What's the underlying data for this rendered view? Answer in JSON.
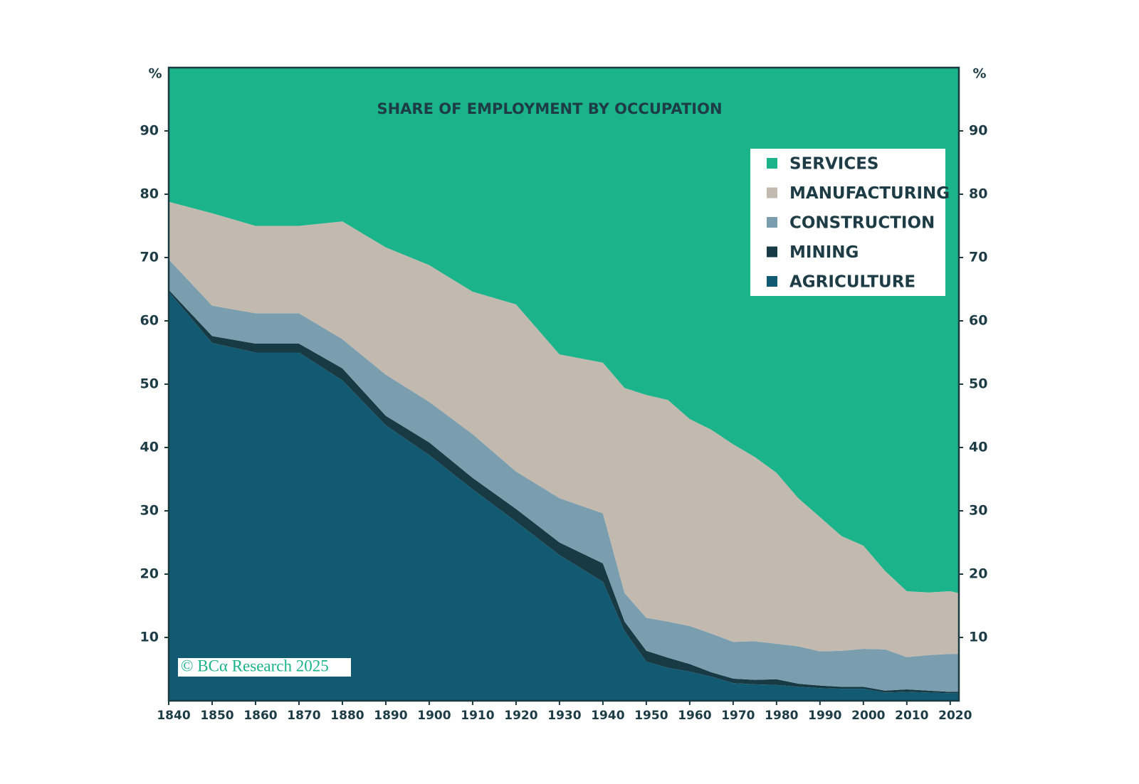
{
  "chart_data": {
    "type": "stacked_area",
    "title": "SHARE OF EMPLOYMENT BY OCCUPATION",
    "y_unit": "%",
    "source": "© BCα Research 2025",
    "x": [
      1840,
      1850,
      1860,
      1870,
      1880,
      1890,
      1900,
      1910,
      1920,
      1930,
      1940,
      1945,
      1950,
      1955,
      1960,
      1965,
      1970,
      1975,
      1980,
      1985,
      1990,
      1995,
      2000,
      2005,
      2010,
      2015,
      2020,
      2022
    ],
    "series": [
      {
        "name": "AGRICULTURE",
        "color": "#125a72",
        "values": [
          64.6,
          56.5,
          55,
          55,
          50.6,
          43.5,
          38.8,
          33.4,
          28.3,
          23,
          18.8,
          11,
          6.2,
          5.2,
          4.6,
          3.8,
          2.8,
          2.6,
          2.5,
          2.2,
          2.0,
          1.9,
          1.9,
          1.3,
          1.4,
          1.3,
          1.2,
          1.2
        ]
      },
      {
        "name": "MINING",
        "color": "#173a44",
        "values": [
          0.3,
          1.1,
          1.4,
          1.4,
          1.9,
          1.5,
          2.0,
          1.8,
          2.0,
          2.0,
          2.9,
          1.5,
          1.7,
          1.6,
          1.2,
          0.7,
          0.7,
          0.7,
          0.9,
          0.5,
          0.4,
          0.3,
          0.3,
          0.3,
          0.4,
          0.3,
          0.2,
          0.2
        ]
      },
      {
        "name": "CONSTRUCTION",
        "color": "#7b9eaf",
        "values": [
          4.8,
          4.8,
          4.8,
          4.8,
          4.6,
          6.5,
          6.4,
          6.9,
          5.9,
          7.0,
          7.9,
          4.5,
          5.2,
          5.7,
          6.0,
          6.1,
          5.8,
          6.1,
          5.6,
          5.9,
          5.4,
          5.7,
          6.0,
          6.5,
          5.1,
          5.6,
          6.0,
          6.0
        ]
      },
      {
        "name": "MANUFACTURING",
        "color": "#c2b9af",
        "values": [
          9.1,
          14.6,
          13.8,
          13.8,
          18.6,
          20.1,
          21.6,
          22.5,
          26.4,
          22.7,
          23.8,
          32.4,
          35.2,
          35,
          32.7,
          32.2,
          31.2,
          29.1,
          27,
          23.4,
          21.2,
          18.1,
          16.3,
          12.4,
          10.4,
          9.9,
          9.9,
          9.6
        ]
      },
      {
        "name": "SERVICES",
        "color": "#1bb38a",
        "values": [
          21.2,
          23,
          25,
          25,
          24.3,
          28.4,
          31.2,
          35.4,
          37.4,
          45.3,
          46.6,
          50.6,
          51.7,
          52.5,
          55.5,
          57.2,
          59.5,
          61.5,
          64,
          68,
          71,
          74,
          75.5,
          79.5,
          82.7,
          82.9,
          82.7,
          83
        ]
      }
    ],
    "xlim": [
      1840,
      2022
    ],
    "xticks": [
      1840,
      1850,
      1860,
      1870,
      1880,
      1890,
      1900,
      1910,
      1920,
      1930,
      1940,
      1950,
      1960,
      1970,
      1980,
      1990,
      2000,
      2010,
      2020
    ],
    "ylim": [
      0,
      100
    ],
    "yticks": [
      10,
      20,
      30,
      40,
      50,
      60,
      70,
      80,
      90
    ],
    "legend_position": "upper right"
  }
}
